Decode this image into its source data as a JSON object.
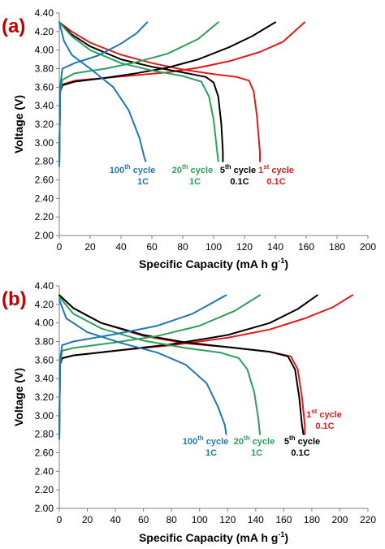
{
  "chart_data": [
    {
      "type": "line",
      "panel": "(a)",
      "xlabel": "Specific Capacity (mA h g-1)",
      "ylabel": "Voltage (V)",
      "xlim": [
        0,
        200
      ],
      "ylim": [
        2.0,
        4.4
      ],
      "xticks": [
        0,
        20,
        40,
        60,
        80,
        100,
        120,
        140,
        160,
        180,
        200
      ],
      "yticks": [
        "2.00",
        "2.20",
        "2.40",
        "2.60",
        "2.80",
        "3.00",
        "3.20",
        "3.40",
        "3.60",
        "3.80",
        "4.00",
        "4.20",
        "4.40"
      ],
      "grid": false,
      "series": [
        {
          "color": "#e31a1c",
          "charge": [
            [
              0,
              2.75
            ],
            [
              0.5,
              3.55
            ],
            [
              2,
              3.63
            ],
            [
              10,
              3.67
            ],
            [
              30,
              3.7
            ],
            [
              50,
              3.73
            ],
            [
              70,
              3.76
            ],
            [
              90,
              3.81
            ],
            [
              110,
              3.88
            ],
            [
              130,
              3.98
            ],
            [
              145,
              4.09
            ],
            [
              159,
              4.3
            ]
          ],
          "discharge": [
            [
              0,
              4.3
            ],
            [
              8,
              4.2
            ],
            [
              20,
              4.08
            ],
            [
              40,
              3.95
            ],
            [
              60,
              3.86
            ],
            [
              80,
              3.79
            ],
            [
              100,
              3.74
            ],
            [
              115,
              3.71
            ],
            [
              123,
              3.67
            ],
            [
              126,
              3.55
            ],
            [
              128,
              3.3
            ],
            [
              130,
              2.9
            ],
            [
              130,
              2.8
            ]
          ]
        },
        {
          "color": "#000000",
          "charge": [
            [
              0,
              2.75
            ],
            [
              0.5,
              3.55
            ],
            [
              2,
              3.62
            ],
            [
              10,
              3.66
            ],
            [
              30,
              3.7
            ],
            [
              50,
              3.75
            ],
            [
              70,
              3.81
            ],
            [
              90,
              3.9
            ],
            [
              110,
              4.03
            ],
            [
              125,
              4.15
            ],
            [
              140,
              4.3
            ]
          ],
          "discharge": [
            [
              0,
              4.3
            ],
            [
              8,
              4.17
            ],
            [
              20,
              4.04
            ],
            [
              40,
              3.9
            ],
            [
              60,
              3.82
            ],
            [
              80,
              3.76
            ],
            [
              95,
              3.71
            ],
            [
              100,
              3.65
            ],
            [
              103,
              3.5
            ],
            [
              105,
              3.2
            ],
            [
              106,
              2.9
            ],
            [
              106,
              2.8
            ]
          ]
        },
        {
          "color": "#2ca05a",
          "charge": [
            [
              0,
              2.75
            ],
            [
              0.5,
              3.55
            ],
            [
              2,
              3.68
            ],
            [
              10,
              3.75
            ],
            [
              30,
              3.8
            ],
            [
              50,
              3.87
            ],
            [
              70,
              3.96
            ],
            [
              90,
              4.12
            ],
            [
              103,
              4.3
            ]
          ],
          "discharge": [
            [
              0,
              4.3
            ],
            [
              8,
              4.15
            ],
            [
              20,
              4.0
            ],
            [
              40,
              3.86
            ],
            [
              60,
              3.78
            ],
            [
              80,
              3.72
            ],
            [
              92,
              3.66
            ],
            [
              97,
              3.5
            ],
            [
              100,
              3.25
            ],
            [
              102,
              2.95
            ],
            [
              103,
              2.8
            ]
          ]
        },
        {
          "color": "#1f77b4",
          "charge": [
            [
              0,
              2.75
            ],
            [
              0.5,
              3.6
            ],
            [
              2,
              3.8
            ],
            [
              10,
              3.86
            ],
            [
              25,
              3.94
            ],
            [
              40,
              4.07
            ],
            [
              50,
              4.18
            ],
            [
              57,
              4.3
            ]
          ],
          "discharge": [
            [
              0,
              4.3
            ],
            [
              3,
              4.1
            ],
            [
              8,
              3.95
            ],
            [
              20,
              3.8
            ],
            [
              35,
              3.6
            ],
            [
              45,
              3.35
            ],
            [
              52,
              3.05
            ],
            [
              55,
              2.85
            ],
            [
              56,
              2.8
            ]
          ]
        }
      ],
      "annotations": [
        {
          "label": "100",
          "sup": "th",
          "text": " cycle",
          "rate": "1C",
          "color": "#1f77b4"
        },
        {
          "label": "20",
          "sup": "th",
          "text": " cycle",
          "rate": "1C",
          "color": "#2ca05a"
        },
        {
          "label": "5",
          "sup": "th",
          "text": " cycle",
          "rate": "0.1C",
          "color": "#000000"
        },
        {
          "label": "1",
          "sup": "st",
          "text": " cycle",
          "rate": "0.1C",
          "color": "#e31a1c"
        }
      ]
    },
    {
      "type": "line",
      "panel": "(b)",
      "xlabel": "Specific Capacity (mA h g-1)",
      "ylabel": "Voltage (V)",
      "xlim": [
        0,
        220
      ],
      "ylim": [
        2.0,
        4.4
      ],
      "xticks": [
        0,
        20,
        40,
        60,
        80,
        100,
        120,
        140,
        160,
        180,
        200,
        220
      ],
      "yticks": [
        "2.00",
        "2.20",
        "2.40",
        "2.60",
        "2.80",
        "3.00",
        "3.20",
        "3.40",
        "3.60",
        "3.80",
        "4.00",
        "4.20",
        "4.40"
      ],
      "grid": false,
      "series": [
        {
          "color": "#e31a1c",
          "charge": [
            [
              0,
              2.75
            ],
            [
              0.5,
              3.55
            ],
            [
              2,
              3.62
            ],
            [
              10,
              3.65
            ],
            [
              40,
              3.7
            ],
            [
              80,
              3.76
            ],
            [
              120,
              3.84
            ],
            [
              150,
              3.93
            ],
            [
              175,
              4.05
            ],
            [
              195,
              4.17
            ],
            [
              209,
              4.3
            ]
          ],
          "discharge": [
            [
              0,
              4.3
            ],
            [
              10,
              4.16
            ],
            [
              30,
              4.0
            ],
            [
              60,
              3.86
            ],
            [
              90,
              3.78
            ],
            [
              120,
              3.74
            ],
            [
              150,
              3.69
            ],
            [
              165,
              3.64
            ],
            [
              170,
              3.5
            ],
            [
              173,
              3.2
            ],
            [
              175,
              2.9
            ],
            [
              175,
              2.8
            ]
          ]
        },
        {
          "color": "#000000",
          "charge": [
            [
              0,
              2.75
            ],
            [
              0.5,
              3.55
            ],
            [
              2,
              3.62
            ],
            [
              10,
              3.65
            ],
            [
              40,
              3.7
            ],
            [
              80,
              3.77
            ],
            [
              120,
              3.87
            ],
            [
              150,
              4.0
            ],
            [
              170,
              4.15
            ],
            [
              184,
              4.3
            ]
          ],
          "discharge": [
            [
              0,
              4.3
            ],
            [
              10,
              4.16
            ],
            [
              30,
              4.0
            ],
            [
              60,
              3.87
            ],
            [
              90,
              3.79
            ],
            [
              120,
              3.74
            ],
            [
              150,
              3.69
            ],
            [
              163,
              3.64
            ],
            [
              168,
              3.5
            ],
            [
              171,
              3.2
            ],
            [
              173,
              2.9
            ],
            [
              174,
              2.8
            ]
          ]
        },
        {
          "color": "#2ca05a",
          "charge": [
            [
              0,
              2.75
            ],
            [
              0.5,
              3.55
            ],
            [
              2,
              3.7
            ],
            [
              10,
              3.73
            ],
            [
              40,
              3.79
            ],
            [
              70,
              3.86
            ],
            [
              100,
              3.97
            ],
            [
              125,
              4.13
            ],
            [
              143,
              4.3
            ]
          ],
          "discharge": [
            [
              0,
              4.28
            ],
            [
              10,
              4.1
            ],
            [
              30,
              3.94
            ],
            [
              60,
              3.81
            ],
            [
              90,
              3.73
            ],
            [
              115,
              3.68
            ],
            [
              128,
              3.62
            ],
            [
              134,
              3.5
            ],
            [
              139,
              3.25
            ],
            [
              142,
              2.95
            ],
            [
              143,
              2.8
            ]
          ]
        },
        {
          "color": "#1f77b4",
          "charge": [
            [
              0,
              2.75
            ],
            [
              0.5,
              3.6
            ],
            [
              2,
              3.76
            ],
            [
              10,
              3.8
            ],
            [
              40,
              3.88
            ],
            [
              70,
              3.97
            ],
            [
              95,
              4.1
            ],
            [
              119,
              4.3
            ]
          ],
          "discharge": [
            [
              0,
              4.25
            ],
            [
              5,
              4.05
            ],
            [
              20,
              3.9
            ],
            [
              45,
              3.78
            ],
            [
              70,
              3.68
            ],
            [
              90,
              3.55
            ],
            [
              105,
              3.35
            ],
            [
              113,
              3.1
            ],
            [
              118,
              2.9
            ],
            [
              119,
              2.8
            ]
          ]
        }
      ],
      "annotations": [
        {
          "label": "100",
          "sup": "th",
          "text": " cycle",
          "rate": "1C",
          "color": "#1f77b4"
        },
        {
          "label": "20",
          "sup": "th",
          "text": " cycle",
          "rate": "1C",
          "color": "#2ca05a"
        },
        {
          "label": "5",
          "sup": "th",
          "text": " cycle",
          "rate": "0.1C",
          "color": "#000000"
        },
        {
          "label": "1",
          "sup": "st",
          "text": " cycle",
          "rate": "0.1C",
          "color": "#e31a1c"
        }
      ]
    }
  ]
}
